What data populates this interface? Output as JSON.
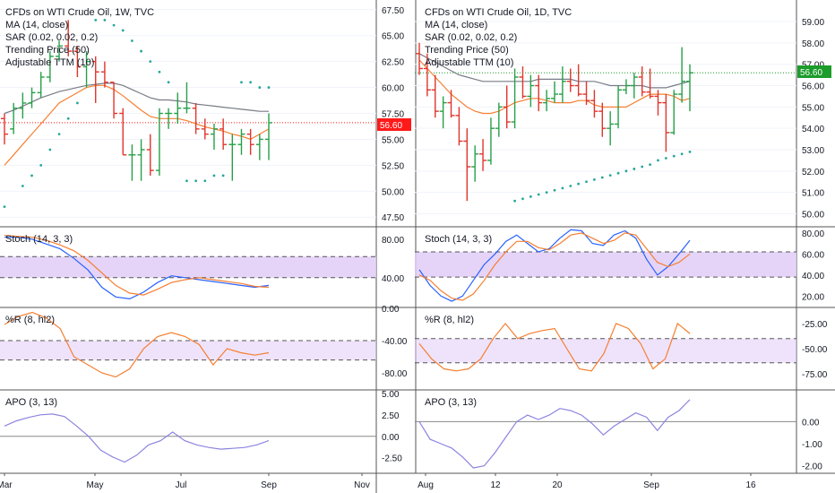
{
  "colors": {
    "up": "#26a048",
    "down": "#e0352b",
    "ma": "#787b86",
    "sar": "#26a69a",
    "ttm": "#f57f31",
    "stoch_k": "#2962ff",
    "stoch_d": "#f57f31",
    "band_fill": "#e1ccf7",
    "band_line": "#555555",
    "apo": "#8c84e0",
    "price_tag_red": "#ff1a1a",
    "price_tag_green": "#1b9c2b"
  },
  "left_chart": {
    "legend": [
      "CFDs on WTI Crude Oil, 1W, TVC",
      "MA (14, close)",
      "SAR (0.02, 0.02, 0.2)",
      "Trending Price (50)",
      "Adjustable TTM (10)"
    ],
    "price_tag": "56.60",
    "price_ticks": [
      "67.50",
      "65.00",
      "62.50",
      "60.00",
      "57.50",
      "55.00",
      "52.50",
      "50.00",
      "47.50"
    ],
    "x_labels": [
      "Mar",
      "May",
      "Jul",
      "Sep",
      "Nov"
    ],
    "stoch_title": "Stoch (14, 3, 3)",
    "stoch_ticks": [
      "80.00",
      "40.00"
    ],
    "wr_title": "%R (8, hl2)",
    "wr_ticks": [
      "0.00",
      "-40.00",
      "-80.00"
    ],
    "apo_title": "APO (3, 13)",
    "apo_ticks": [
      "5.00",
      "2.50",
      "0.00",
      "-2.50"
    ]
  },
  "right_chart": {
    "legend": [
      "CFDs on WTI Crude Oil, 1D, TVC",
      "MA (14, close)",
      "SAR (0.02, 0.02, 0.2)",
      "Trending Price (50)",
      "Adjustable TTM (10)"
    ],
    "price_tag": "56.60",
    "price_ticks": [
      "59.00",
      "58.00",
      "57.00",
      "56.00",
      "55.00",
      "54.00",
      "53.00",
      "52.00",
      "51.00",
      "50.00"
    ],
    "x_labels": [
      "Aug",
      "12",
      "20",
      "Sep",
      "16"
    ],
    "stoch_title": "Stoch (14, 3, 3)",
    "stoch_ticks": [
      "80.00",
      "60.00",
      "40.00",
      "20.00"
    ],
    "wr_title": "%R (8, hl2)",
    "wr_ticks": [
      "-25.00",
      "-50.00",
      "-75.00"
    ],
    "apo_title": "APO (3, 13)",
    "apo_ticks": [
      "0.00",
      "-1.00",
      "-2.00"
    ]
  },
  "chart_data": [
    {
      "type": "candlestick",
      "title": "CFDs on WTI Crude Oil, 1W, TVC",
      "last_price": 56.6,
      "ylim": [
        47.0,
        68.0
      ],
      "ohlc": [
        [
          57.0,
          57.5,
          54.5,
          55.5
        ],
        [
          56.0,
          58.5,
          55.5,
          58.0
        ],
        [
          58.0,
          59.5,
          57.0,
          58.5
        ],
        [
          58.5,
          60.0,
          58.0,
          59.5
        ],
        [
          59.5,
          61.5,
          59.0,
          61.0
        ],
        [
          61.0,
          63.5,
          60.5,
          63.0
        ],
        [
          63.0,
          64.5,
          62.5,
          64.0
        ],
        [
          64.0,
          66.5,
          63.0,
          63.5
        ],
        [
          63.5,
          64.0,
          61.0,
          62.0
        ],
        [
          62.0,
          63.5,
          60.0,
          62.5
        ],
        [
          62.5,
          63.0,
          58.5,
          61.5
        ],
        [
          61.5,
          62.5,
          60.0,
          60.5
        ],
        [
          60.5,
          60.5,
          57.0,
          57.5
        ],
        [
          57.5,
          58.0,
          53.5,
          53.5
        ],
        [
          53.5,
          54.5,
          51.0,
          53.5
        ],
        [
          53.5,
          55.0,
          51.0,
          54.0
        ],
        [
          54.0,
          55.5,
          51.5,
          52.0
        ],
        [
          52.0,
          58.0,
          51.5,
          57.5
        ],
        [
          57.5,
          58.0,
          56.0,
          57.5
        ],
        [
          57.5,
          59.5,
          56.5,
          58.0
        ],
        [
          58.0,
          60.5,
          57.5,
          58.0
        ],
        [
          58.0,
          58.5,
          55.5,
          56.0
        ],
        [
          56.0,
          57.0,
          55.0,
          55.5
        ],
        [
          55.5,
          56.5,
          54.0,
          56.0
        ],
        [
          56.0,
          57.0,
          54.0,
          54.5
        ],
        [
          54.5,
          55.5,
          51.0,
          54.5
        ],
        [
          54.5,
          56.0,
          53.5,
          55.5
        ],
        [
          55.5,
          56.0,
          53.5,
          54.5
        ],
        [
          54.5,
          55.5,
          53.0,
          55.0
        ],
        [
          55.0,
          57.5,
          53.0,
          56.6
        ]
      ],
      "ma": [
        57.5,
        57.8,
        58.2,
        58.6,
        59.0,
        59.3,
        59.6,
        59.8,
        60.0,
        60.2,
        60.3,
        60.4,
        60.4,
        60.2,
        59.8,
        59.4,
        59.0,
        58.8,
        58.8,
        58.7,
        58.6,
        58.4,
        58.3,
        58.2,
        58.1,
        58.0,
        57.9,
        57.8,
        57.7,
        57.7
      ],
      "ttm": [
        52.5,
        53.5,
        54.5,
        55.5,
        56.5,
        57.5,
        58.5,
        59.0,
        59.5,
        60.0,
        60.2,
        60.2,
        59.8,
        59.2,
        58.5,
        57.8,
        57.2,
        57.0,
        57.0,
        57.0,
        56.8,
        56.5,
        56.2,
        56.0,
        55.8,
        55.5,
        55.3,
        55.0,
        55.5,
        56.0
      ],
      "sar": [
        48.5,
        null,
        50.5,
        51.5,
        52.5,
        54.0,
        55.5,
        57.0,
        58.5,
        null,
        66.5,
        66.5,
        66.0,
        65.5,
        64.5,
        63.5,
        62.5,
        61.5,
        60.5,
        null,
        51.0,
        51.0,
        51.0,
        51.5,
        51.5,
        null,
        60.5,
        60.5,
        60.0,
        60.0
      ],
      "stoch_k": [
        82,
        82,
        80,
        75,
        70,
        60,
        48,
        30,
        20,
        18,
        25,
        35,
        42,
        40,
        38,
        36,
        34,
        32,
        30,
        32
      ],
      "stoch_d": [
        84,
        83,
        82,
        79,
        74,
        68,
        58,
        45,
        32,
        24,
        22,
        28,
        35,
        38,
        40,
        38,
        36,
        34,
        31,
        30
      ],
      "williams_r": [
        -20,
        -10,
        -5,
        -12,
        -25,
        -60,
        -70,
        -80,
        -85,
        -75,
        -50,
        -35,
        -30,
        -35,
        -45,
        -70,
        -50,
        -55,
        -58,
        -55
      ],
      "apo": [
        1.2,
        1.8,
        2.2,
        2.5,
        2.6,
        2.3,
        1.2,
        0.0,
        -1.6,
        -2.4,
        -3.0,
        -2.2,
        -1.0,
        -0.5,
        0.5,
        -0.5,
        -1.0,
        -1.3,
        -1.5,
        -1.4,
        -1.3,
        -1.0,
        -0.5
      ]
    },
    {
      "type": "candlestick",
      "title": "CFDs on WTI Crude Oil, 1D, TVC",
      "last_price": 56.6,
      "ylim": [
        49.6,
        59.8
      ],
      "ohlc": [
        [
          57.5,
          58.0,
          56.5,
          56.8
        ],
        [
          56.8,
          57.5,
          55.5,
          55.8
        ],
        [
          55.8,
          56.5,
          54.5,
          54.8
        ],
        [
          54.8,
          55.5,
          54.0,
          55.2
        ],
        [
          55.2,
          55.8,
          54.5,
          54.6
        ],
        [
          54.6,
          55.0,
          53.2,
          53.4
        ],
        [
          53.4,
          54.0,
          50.6,
          52.2
        ],
        [
          52.2,
          53.2,
          51.5,
          52.8
        ],
        [
          52.8,
          53.5,
          52.0,
          52.5
        ],
        [
          52.5,
          54.5,
          52.3,
          54.0
        ],
        [
          54.0,
          55.2,
          53.6,
          55.0
        ],
        [
          55.0,
          56.0,
          54.0,
          54.3
        ],
        [
          54.3,
          56.8,
          54.0,
          56.4
        ],
        [
          56.4,
          56.9,
          55.4,
          55.5
        ],
        [
          55.5,
          56.5,
          55.0,
          56.0
        ],
        [
          56.0,
          56.5,
          54.8,
          55.2
        ],
        [
          55.2,
          55.8,
          54.8,
          55.4
        ],
        [
          55.4,
          56.2,
          55.2,
          55.6
        ],
        [
          55.6,
          56.9,
          55.2,
          56.2
        ],
        [
          56.2,
          56.8,
          55.7,
          56.0
        ],
        [
          56.0,
          57.0,
          55.5,
          55.6
        ],
        [
          55.6,
          56.2,
          55.1,
          55.3
        ],
        [
          55.3,
          55.8,
          54.5,
          54.8
        ],
        [
          54.8,
          55.2,
          53.6,
          54.0
        ],
        [
          54.0,
          54.8,
          53.2,
          54.2
        ],
        [
          54.2,
          56.0,
          54.0,
          55.8
        ],
        [
          55.8,
          56.3,
          55.6,
          56.0
        ],
        [
          56.0,
          56.6,
          55.4,
          56.4
        ],
        [
          56.4,
          56.9,
          55.5,
          55.7
        ],
        [
          55.7,
          56.8,
          55.4,
          55.5
        ],
        [
          55.5,
          55.8,
          54.6,
          55.2
        ],
        [
          55.2,
          55.6,
          52.9,
          53.8
        ],
        [
          53.8,
          55.8,
          53.7,
          55.6
        ],
        [
          55.6,
          57.8,
          55.2,
          56.2
        ],
        [
          56.2,
          57.0,
          54.8,
          56.6
        ]
      ],
      "ma": [
        57.5,
        57.3,
        57.1,
        56.9,
        56.7,
        56.5,
        56.4,
        56.3,
        56.2,
        56.2,
        56.2,
        56.2,
        56.2,
        56.2,
        56.2,
        56.3,
        56.3,
        56.3,
        56.3,
        56.3,
        56.2,
        56.2,
        56.2,
        56.1,
        56.0,
        56.0,
        56.0,
        56.0,
        56.0,
        55.9,
        55.9,
        55.9,
        56.0,
        56.1,
        56.2
      ],
      "ttm": [
        57.2,
        56.8,
        56.4,
        56.0,
        55.6,
        55.3,
        55.0,
        54.8,
        54.7,
        54.7,
        54.8,
        55.0,
        55.2,
        55.3,
        55.4,
        55.4,
        55.3,
        55.2,
        55.2,
        55.2,
        55.3,
        55.3,
        55.1,
        55.0,
        55.0,
        55.0,
        55.0,
        55.2,
        55.4,
        55.6,
        55.6,
        55.6,
        55.5,
        55.3,
        55.4
      ],
      "sar": [
        null,
        null,
        null,
        null,
        null,
        null,
        null,
        null,
        null,
        null,
        null,
        null,
        50.6,
        50.7,
        50.8,
        50.9,
        51.0,
        51.1,
        51.2,
        51.3,
        51.4,
        51.5,
        51.6,
        51.7,
        51.8,
        51.9,
        52.0,
        52.1,
        52.2,
        52.3,
        52.5,
        52.6,
        52.7,
        52.8,
        52.9
      ],
      "stoch_k": [
        45,
        30,
        20,
        15,
        20,
        35,
        50,
        60,
        72,
        78,
        70,
        62,
        65,
        75,
        83,
        82,
        70,
        68,
        78,
        82,
        75,
        55,
        40,
        48,
        60,
        73
      ],
      "stoch_d": [
        40,
        35,
        25,
        18,
        16,
        22,
        35,
        50,
        62,
        72,
        72,
        66,
        64,
        70,
        78,
        80,
        75,
        70,
        73,
        80,
        78,
        65,
        52,
        48,
        52,
        60
      ],
      "williams_r": [
        -45,
        -60,
        -70,
        -72,
        -70,
        -60,
        -40,
        -25,
        -40,
        -35,
        -32,
        -30,
        -50,
        -70,
        -72,
        -55,
        -25,
        -30,
        -45,
        -70,
        -60,
        -25,
        -35
      ],
      "apo": [
        0.0,
        -0.8,
        -1.0,
        -1.2,
        -1.6,
        -2.1,
        -2.0,
        -1.4,
        -0.7,
        0.0,
        0.3,
        0.1,
        0.3,
        0.6,
        0.5,
        0.3,
        -0.1,
        -0.6,
        -0.2,
        0.1,
        0.4,
        0.2,
        -0.4,
        0.2,
        0.5,
        1.0
      ]
    }
  ]
}
